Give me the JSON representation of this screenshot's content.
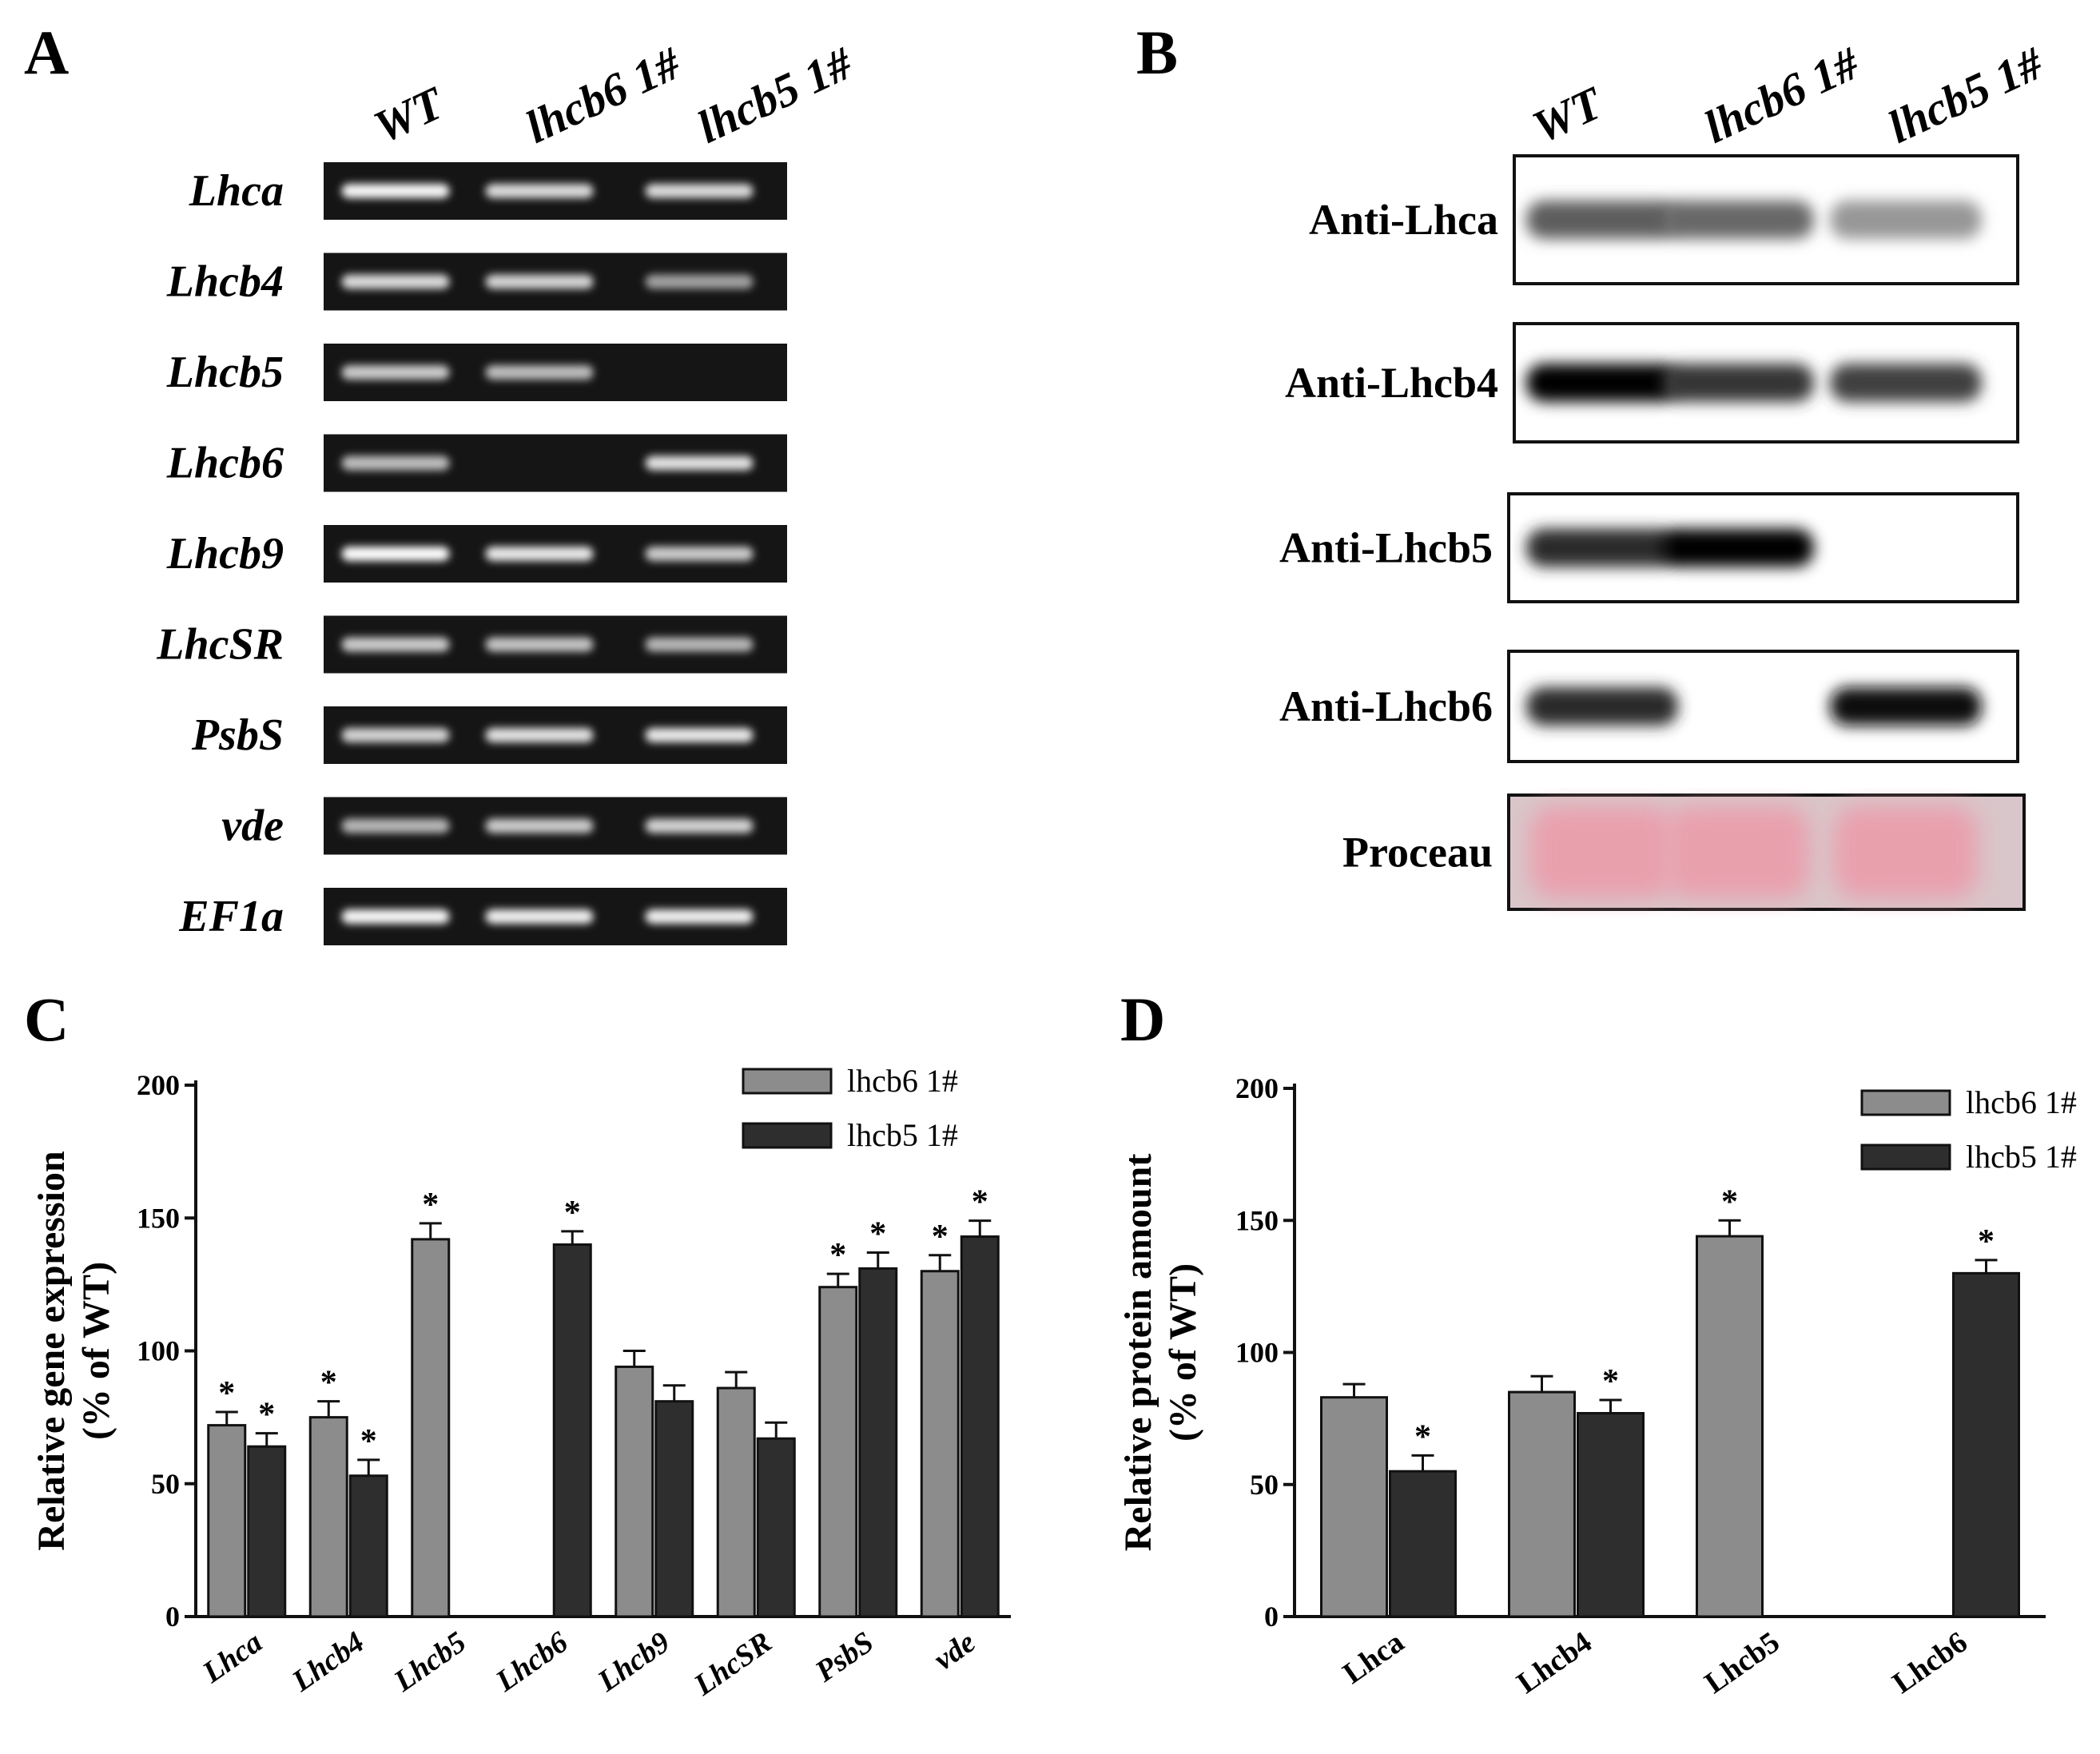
{
  "panels": {
    "a": {
      "letter": "A",
      "lanes": [
        "WT",
        "lhcb6 1#",
        "lhcb5 1#"
      ],
      "genes": [
        "Lhca",
        "Lhcb4",
        "Lhcb5",
        "Lhcb6",
        "Lhcb9",
        "LhcSR",
        "PsbS",
        "vde",
        "EF1a"
      ],
      "band_intensity": [
        [
          0.95,
          0.75,
          0.75
        ],
        [
          0.75,
          0.7,
          0.35
        ],
        [
          0.65,
          0.55,
          0.0
        ],
        [
          0.55,
          0.0,
          0.8
        ],
        [
          1.0,
          0.85,
          0.65
        ],
        [
          0.65,
          0.6,
          0.5
        ],
        [
          0.7,
          0.8,
          0.85
        ],
        [
          0.5,
          0.65,
          0.7
        ],
        [
          0.95,
          0.9,
          0.9
        ]
      ]
    },
    "b": {
      "letter": "B",
      "lanes": [
        "WT",
        "lhcb6 1#",
        "lhcb5 1#"
      ],
      "antibodies": [
        "Anti-Lhca",
        "Anti-Lhcb4",
        "Anti-Lhcb5",
        "Anti-Lhcb6",
        "Proceau"
      ],
      "band_intensity": [
        [
          0.55,
          0.5,
          0.25
        ],
        [
          1.0,
          0.75,
          0.7
        ],
        [
          0.8,
          1.0,
          0.0
        ],
        [
          0.8,
          0.0,
          0.95
        ],
        [
          1.0,
          1.0,
          1.0
        ]
      ]
    },
    "c": {
      "letter": "C"
    },
    "d": {
      "letter": "D"
    }
  },
  "colors": {
    "series1": "#8c8c8c",
    "series2": "#2e2e2e",
    "ponceau": "#e9a0ad"
  },
  "chart_data": [
    {
      "type": "bar",
      "panel": "C",
      "ylabel": "Relative gene expression (% of WT)",
      "ylabel_lines": [
        "Relative gene expression",
        "(% of WT)"
      ],
      "ylim": [
        0,
        200
      ],
      "yticks": [
        "0",
        "50",
        "100",
        "150",
        "200"
      ],
      "categories": [
        "Lhca",
        "Lhcb4",
        "Lhcb5",
        "Lhcb6",
        "Lhcb9",
        "LhcSR",
        "PsbS",
        "vde"
      ],
      "categories_italic": true,
      "legend_position": "top-right",
      "series": [
        {
          "name": "lhcb6 1#",
          "values": [
            72,
            75,
            142,
            0,
            94,
            86,
            124,
            130
          ],
          "errors": [
            5,
            6,
            6,
            0,
            6,
            6,
            5,
            6
          ],
          "significant": [
            true,
            true,
            true,
            false,
            false,
            false,
            true,
            true
          ]
        },
        {
          "name": "lhcb5 1#",
          "values": [
            64,
            53,
            0,
            140,
            81,
            67,
            131,
            143
          ],
          "errors": [
            5,
            6,
            0,
            5,
            6,
            6,
            6,
            6
          ],
          "significant": [
            true,
            true,
            false,
            true,
            false,
            false,
            true,
            true
          ]
        }
      ]
    },
    {
      "type": "bar",
      "panel": "D",
      "ylabel": "Relative protein amount (% of WT)",
      "ylabel_lines": [
        "Relative protein amount",
        "(% of WT)"
      ],
      "ylim": [
        0,
        200
      ],
      "yticks": [
        "0",
        "50",
        "100",
        "150",
        "200"
      ],
      "categories": [
        "Lhca",
        "Lhcb4",
        "Lhcb5",
        "Lhcb6"
      ],
      "categories_italic": false,
      "legend_position": "top-right",
      "series": [
        {
          "name": "lhcb6 1#",
          "values": [
            83,
            85,
            144,
            0
          ],
          "errors": [
            5,
            6,
            6,
            0
          ],
          "significant": [
            false,
            false,
            true,
            false
          ]
        },
        {
          "name": "lhcb5 1#",
          "values": [
            55,
            77,
            0,
            130
          ],
          "errors": [
            6,
            5,
            0,
            5
          ],
          "significant": [
            true,
            true,
            false,
            true
          ]
        }
      ]
    }
  ]
}
